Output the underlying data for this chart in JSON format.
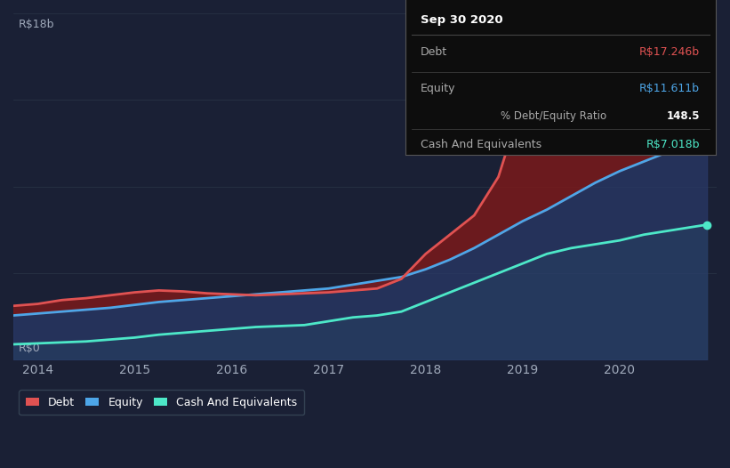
{
  "bg_color": "#1a2035",
  "plot_bg_color": "#1e2a3a",
  "title": "Sep 30 2020",
  "ylabel_top": "R$18b",
  "ylabel_bottom": "R$0",
  "xlim": [
    2013.75,
    2021.0
  ],
  "ylim": [
    0,
    18
  ],
  "x_ticks": [
    2014,
    2015,
    2016,
    2017,
    2018,
    2019,
    2020
  ],
  "tooltip": {
    "title": "Sep 30 2020",
    "debt_label": "Debt",
    "debt_value": "R$17.246b",
    "equity_label": "Equity",
    "equity_value": "R$11.611b",
    "ratio_text": "148.5% Debt/Equity Ratio",
    "cash_label": "Cash And Equivalents",
    "cash_value": "R$7.018b"
  },
  "debt_color": "#e05252",
  "equity_color": "#4da6e8",
  "cash_color": "#4de8c8",
  "debt_fill_color": "#7a1a1a",
  "equity_fill_color": "#2a3a6a",
  "cash_fill_color": "#1a4a4a",
  "legend_bg": "#252e40",
  "years": [
    2013.75,
    2014.0,
    2014.25,
    2014.5,
    2014.75,
    2015.0,
    2015.25,
    2015.5,
    2015.75,
    2016.0,
    2016.25,
    2016.5,
    2016.75,
    2017.0,
    2017.25,
    2017.5,
    2017.75,
    2018.0,
    2018.25,
    2018.5,
    2018.75,
    2019.0,
    2019.25,
    2019.5,
    2019.75,
    2020.0,
    2020.25,
    2020.5,
    2020.75,
    2020.9
  ],
  "debt": [
    2.8,
    2.9,
    3.1,
    3.2,
    3.35,
    3.5,
    3.6,
    3.55,
    3.45,
    3.4,
    3.35,
    3.4,
    3.45,
    3.5,
    3.6,
    3.7,
    4.2,
    5.5,
    6.5,
    7.5,
    9.5,
    13.5,
    15.5,
    14.5,
    14.0,
    14.5,
    15.5,
    16.5,
    17.0,
    17.246
  ],
  "equity": [
    2.3,
    2.4,
    2.5,
    2.6,
    2.7,
    2.85,
    3.0,
    3.1,
    3.2,
    3.3,
    3.4,
    3.5,
    3.6,
    3.7,
    3.9,
    4.1,
    4.3,
    4.7,
    5.2,
    5.8,
    6.5,
    7.2,
    7.8,
    8.5,
    9.2,
    9.8,
    10.3,
    10.8,
    11.3,
    11.611
  ],
  "cash": [
    0.8,
    0.85,
    0.9,
    0.95,
    1.05,
    1.15,
    1.3,
    1.4,
    1.5,
    1.6,
    1.7,
    1.75,
    1.8,
    2.0,
    2.2,
    2.3,
    2.5,
    3.0,
    3.5,
    4.0,
    4.5,
    5.0,
    5.5,
    5.8,
    6.0,
    6.2,
    6.5,
    6.7,
    6.9,
    7.018
  ]
}
